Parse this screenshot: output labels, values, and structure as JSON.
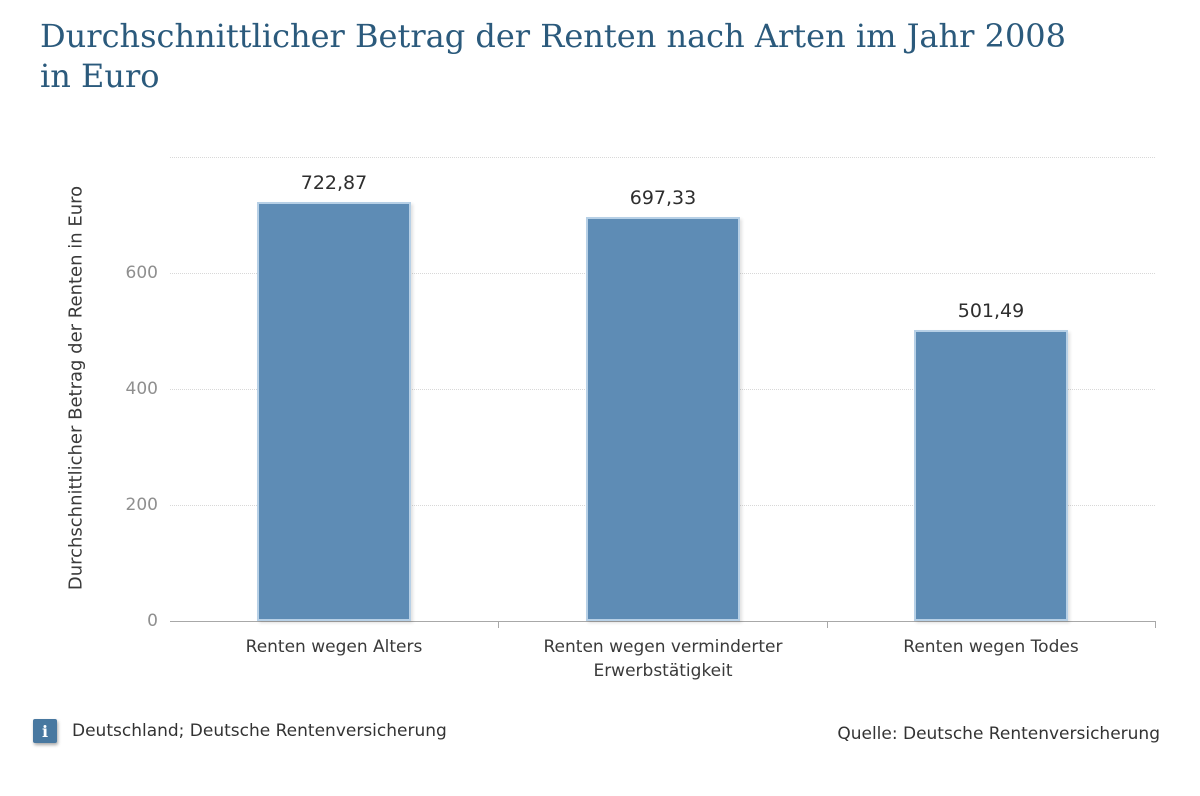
{
  "header": {
    "title_lines": [
      "Durchschnittlicher Betrag der Renten nach Arten im Jahr 2008",
      "in Euro"
    ]
  },
  "chart_data": {
    "type": "bar",
    "title": "Durchschnittlicher Betrag der Renten nach Arten im Jahr 2008 in Euro",
    "categories": [
      "Renten wegen Alters",
      "Renten wegen verminderter Erwerbstätigkeit",
      "Renten wegen Todes"
    ],
    "values": [
      722.87,
      697.33,
      501.49
    ],
    "value_labels": [
      "722,87",
      "697,33",
      "501,49"
    ],
    "xlabel": "",
    "ylabel": "Durchschnittlicher Betrag der Renten in Euro",
    "ylim": [
      0,
      800
    ],
    "yticks": [
      0,
      200,
      400,
      600
    ],
    "grid": true,
    "legend": false,
    "bar_color": "#5e8cb5",
    "bar_border_color": "#b7d0e6"
  },
  "footer": {
    "info_icon_glyph": "i",
    "left_text": "Deutschland; Deutsche Rentenversicherung",
    "right_text": "Quelle: Deutsche Rentenversicherung"
  },
  "colors": {
    "title": "#2b5a7c",
    "axis_text": "#8f8f8f",
    "label_text": "#3a3a3a",
    "gridline": "#d8d8d8",
    "baseline": "#a8a8a8",
    "info_icon_bg": "#4878a0"
  }
}
